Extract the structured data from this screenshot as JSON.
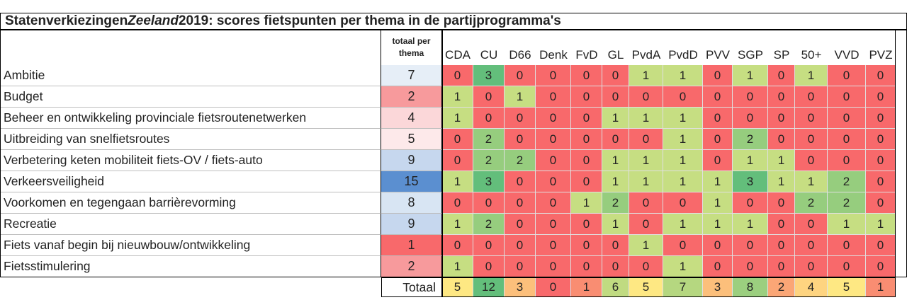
{
  "chart_data": {
    "type": "table",
    "title_parts": [
      "Statenverkiezingen ",
      "Zeeland",
      " 2019: scores fietspunten per thema in de partijprogramma's"
    ],
    "total_header": "totaal per thema",
    "total_header_lines": [
      "totaal per",
      "thema"
    ],
    "parties": [
      "CDA",
      "CU",
      "D66",
      "Denk",
      "FvD",
      "GL",
      "PvdA",
      "PvdD",
      "PVV",
      "SGP",
      "SP",
      "50+",
      "VVD",
      "PVZ"
    ],
    "rows": [
      {
        "topic": "Ambitie",
        "total": 7,
        "scores": [
          0,
          3,
          0,
          0,
          0,
          0,
          1,
          1,
          0,
          1,
          0,
          1,
          0,
          0
        ]
      },
      {
        "topic": "Budget",
        "total": 2,
        "scores": [
          1,
          0,
          1,
          0,
          0,
          0,
          0,
          0,
          0,
          0,
          0,
          0,
          0,
          0
        ]
      },
      {
        "topic": "Beheer en ontwikkeling provinciale fietsroutenetwerken",
        "total": 4,
        "scores": [
          1,
          0,
          0,
          0,
          0,
          1,
          1,
          1,
          0,
          0,
          0,
          0,
          0,
          0
        ]
      },
      {
        "topic": "Uitbreiding van snelfietsroutes",
        "total": 5,
        "scores": [
          0,
          2,
          0,
          0,
          0,
          0,
          0,
          1,
          0,
          2,
          0,
          0,
          0,
          0
        ]
      },
      {
        "topic": "Verbetering keten mobiliteit fiets-OV / fiets-auto",
        "total": 9,
        "scores": [
          0,
          2,
          2,
          0,
          0,
          1,
          1,
          1,
          0,
          1,
          1,
          0,
          0,
          0
        ]
      },
      {
        "topic": "Verkeersveiligheid",
        "total": 15,
        "scores": [
          1,
          3,
          0,
          0,
          0,
          1,
          1,
          1,
          1,
          3,
          1,
          1,
          2,
          0
        ]
      },
      {
        "topic": "Voorkomen en tegengaan barrièrevorming",
        "total": 8,
        "scores": [
          0,
          0,
          0,
          0,
          1,
          2,
          0,
          0,
          1,
          0,
          0,
          2,
          2,
          0
        ]
      },
      {
        "topic": "Recreatie",
        "total": 9,
        "scores": [
          1,
          2,
          0,
          0,
          0,
          1,
          0,
          1,
          1,
          1,
          0,
          0,
          1,
          1
        ]
      },
      {
        "topic": "Fiets vanaf begin bij nieuwbouw/ontwikkeling",
        "total": 1,
        "scores": [
          0,
          0,
          0,
          0,
          0,
          0,
          1,
          0,
          0,
          0,
          0,
          0,
          0,
          0
        ]
      },
      {
        "topic": "Fietsstimulering",
        "total": 2,
        "scores": [
          1,
          0,
          0,
          0,
          0,
          0,
          0,
          1,
          0,
          0,
          0,
          0,
          0,
          0
        ]
      }
    ],
    "totals_label": "Totaal",
    "party_totals": [
      5,
      12,
      3,
      0,
      1,
      6,
      5,
      7,
      3,
      8,
      2,
      4,
      5,
      1
    ],
    "score_colors": {
      "0": "#f8696b",
      "1": "#c6de82",
      "2": "#96cd7e",
      "3": "#63be7b"
    },
    "total_row_colors": [
      "#fee883",
      "#63be7b",
      "#fcbf7b",
      "#f8696b",
      "#f98d72",
      "#c0db81",
      "#fee883",
      "#b5d780",
      "#fcbf7b",
      "#9bcf7f",
      "#fba676",
      "#fed480",
      "#fee883",
      "#f98d72"
    ],
    "topic_total_colors": [
      "#e6eef7",
      "#f79a9c",
      "#fbd7d9",
      "#fde9ea",
      "#c6d7ee",
      "#5b8fd0",
      "#d8e5f3",
      "#c6d7ee",
      "#f8696b",
      "#f79a9c"
    ]
  }
}
